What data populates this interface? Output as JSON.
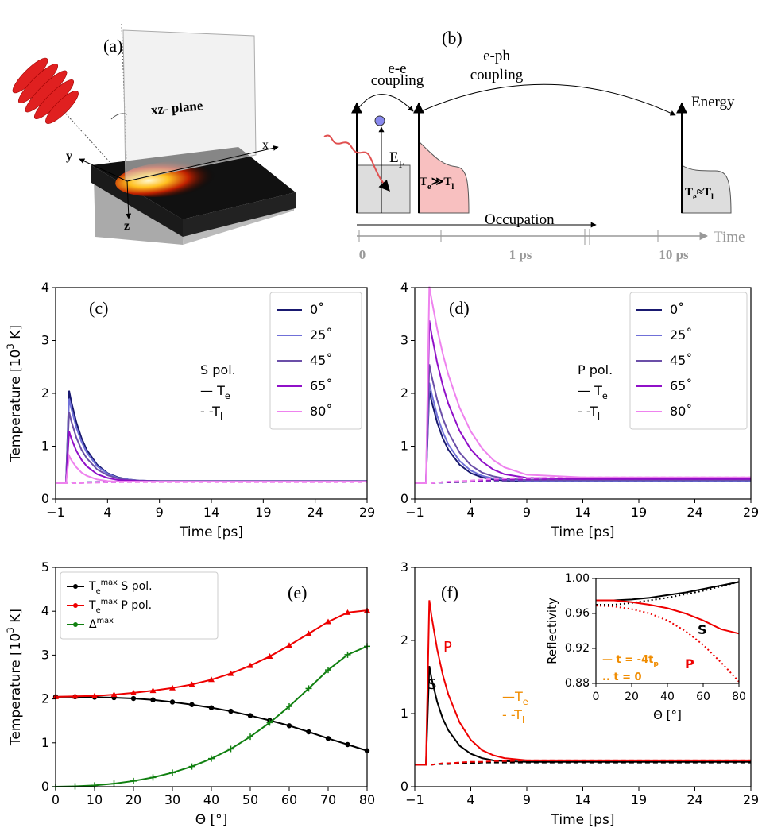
{
  "diagram": {
    "a": {
      "label": "(a)",
      "plane": "xz- plane",
      "x": "x",
      "y": "y",
      "z": "z"
    },
    "b": {
      "label": "(b)",
      "ee_coupling": [
        "e-e",
        "coupling"
      ],
      "eph_coupling": [
        "e-ph",
        "coupling"
      ],
      "energy": "Energy",
      "fermi": "E_{F}",
      "hot": "T_{e}≫T_{l}",
      "eq": "T_{e}≈T_{l}",
      "occupation": "Occupation",
      "time_ticks": [
        "0",
        "1 ps",
        "10 ps"
      ],
      "time": "Time"
    }
  },
  "chart_data": [
    {
      "type": "line",
      "panel": "(c)",
      "xlabel": "Time [ps]",
      "ylabel": "Temperature [10^{3} K]",
      "xlim": [
        -1,
        29
      ],
      "ylim": [
        0,
        4
      ],
      "xticks": [
        {
          "value": -1,
          "label": "−1"
        },
        4,
        9,
        14,
        19,
        24,
        29
      ],
      "yticks": [
        0,
        1,
        2,
        3,
        4
      ],
      "legend": "upper right",
      "annotations": [
        {
          "text": "S pol.",
          "color": "#000000"
        },
        {
          "text": "— T_{e}",
          "color": "#000000"
        },
        {
          "text": "- -T_{l}",
          "color": "#000000"
        }
      ],
      "x": [
        -1,
        0,
        0.3,
        0.5,
        1,
        1.5,
        2,
        3,
        4,
        5,
        6,
        7,
        9,
        14,
        19,
        24,
        29
      ],
      "series": [
        {
          "name": "0˚",
          "color": "#191970",
          "values": [
            0.3,
            0.3,
            2.05,
            1.85,
            1.45,
            1.15,
            0.93,
            0.65,
            0.49,
            0.41,
            0.37,
            0.35,
            0.34,
            0.34,
            0.34,
            0.34,
            0.34
          ],
          "tl_values": [
            0.3,
            0.3,
            0.3,
            0.3,
            0.31,
            0.31,
            0.32,
            0.32,
            0.33,
            0.33,
            0.33,
            0.33,
            0.33,
            0.33,
            0.33,
            0.33,
            0.33
          ]
        },
        {
          "name": "25˚",
          "color": "#7070d8",
          "values": [
            0.3,
            0.3,
            1.9,
            1.72,
            1.35,
            1.08,
            0.88,
            0.62,
            0.48,
            0.4,
            0.37,
            0.35,
            0.34,
            0.34,
            0.34,
            0.34,
            0.34
          ],
          "tl_values": [
            0.3,
            0.3,
            0.3,
            0.3,
            0.31,
            0.31,
            0.32,
            0.32,
            0.33,
            0.33,
            0.33,
            0.33,
            0.33,
            0.33,
            0.33,
            0.33,
            0.33
          ]
        },
        {
          "name": "45˚",
          "color": "#6b4fa8",
          "values": [
            0.3,
            0.3,
            1.65,
            1.48,
            1.16,
            0.93,
            0.77,
            0.56,
            0.45,
            0.39,
            0.36,
            0.35,
            0.34,
            0.34,
            0.34,
            0.34,
            0.34
          ],
          "tl_values": [
            0.3,
            0.3,
            0.3,
            0.3,
            0.31,
            0.31,
            0.31,
            0.32,
            0.32,
            0.33,
            0.33,
            0.33,
            0.33,
            0.33,
            0.33,
            0.33,
            0.33
          ]
        },
        {
          "name": "65˚",
          "color": "#9010c8",
          "values": [
            0.3,
            0.3,
            1.28,
            1.15,
            0.91,
            0.74,
            0.62,
            0.47,
            0.4,
            0.36,
            0.35,
            0.34,
            0.33,
            0.33,
            0.33,
            0.33,
            0.33
          ],
          "tl_values": [
            0.3,
            0.3,
            0.3,
            0.3,
            0.3,
            0.31,
            0.31,
            0.32,
            0.32,
            0.32,
            0.33,
            0.33,
            0.33,
            0.33,
            0.33,
            0.33,
            0.33
          ]
        },
        {
          "name": "80˚",
          "color": "#ee82ee",
          "values": [
            0.3,
            0.3,
            0.82,
            0.74,
            0.6,
            0.5,
            0.44,
            0.37,
            0.34,
            0.33,
            0.33,
            0.33,
            0.33,
            0.33,
            0.33,
            0.33,
            0.33
          ],
          "tl_values": [
            0.3,
            0.3,
            0.3,
            0.3,
            0.3,
            0.3,
            0.31,
            0.31,
            0.32,
            0.32,
            0.32,
            0.32,
            0.32,
            0.32,
            0.32,
            0.32,
            0.32
          ]
        }
      ]
    },
    {
      "type": "line",
      "panel": "(d)",
      "xlabel": "Time [ps]",
      "xlim": [
        -1,
        29
      ],
      "ylim": [
        0,
        4
      ],
      "xticks": [
        {
          "value": -1,
          "label": "−1"
        },
        4,
        9,
        14,
        19,
        24,
        29
      ],
      "yticks": [
        0,
        1,
        2,
        3,
        4
      ],
      "legend": "upper right",
      "annotations": [
        {
          "text": "P pol.",
          "color": "#000000"
        },
        {
          "text": "— T_{e}",
          "color": "#000000"
        },
        {
          "text": "- -T_{l}",
          "color": "#000000"
        }
      ],
      "x": [
        -1,
        0,
        0.3,
        0.5,
        1,
        1.5,
        2,
        3,
        4,
        5,
        6,
        7,
        9,
        14,
        19,
        24,
        29
      ],
      "series": [
        {
          "name": "0˚",
          "color": "#191970",
          "values": [
            0.3,
            0.3,
            2.05,
            1.85,
            1.45,
            1.15,
            0.93,
            0.65,
            0.49,
            0.41,
            0.37,
            0.35,
            0.34,
            0.34,
            0.34,
            0.34,
            0.34
          ],
          "tl_values": [
            0.3,
            0.3,
            0.3,
            0.3,
            0.31,
            0.31,
            0.32,
            0.32,
            0.33,
            0.33,
            0.33,
            0.33,
            0.33,
            0.33,
            0.33,
            0.33,
            0.33
          ]
        },
        {
          "name": "25˚",
          "color": "#7070d8",
          "values": [
            0.3,
            0.3,
            2.2,
            2,
            1.58,
            1.27,
            1.03,
            0.72,
            0.54,
            0.44,
            0.39,
            0.37,
            0.35,
            0.35,
            0.35,
            0.35,
            0.35
          ],
          "tl_values": [
            0.3,
            0.3,
            0.3,
            0.3,
            0.31,
            0.31,
            0.32,
            0.33,
            0.33,
            0.34,
            0.34,
            0.35,
            0.35,
            0.35,
            0.35,
            0.35,
            0.35
          ]
        },
        {
          "name": "45˚",
          "color": "#6b4fa8",
          "values": [
            0.3,
            0.3,
            2.55,
            2.33,
            1.88,
            1.53,
            1.26,
            0.88,
            0.64,
            0.5,
            0.43,
            0.39,
            0.36,
            0.36,
            0.36,
            0.36,
            0.36
          ],
          "tl_values": [
            0.3,
            0.3,
            0.3,
            0.3,
            0.31,
            0.32,
            0.32,
            0.33,
            0.34,
            0.34,
            0.35,
            0.35,
            0.36,
            0.36,
            0.36,
            0.36,
            0.36
          ]
        },
        {
          "name": "65˚",
          "color": "#9010c8",
          "values": [
            0.3,
            0.3,
            3.38,
            3.12,
            2.58,
            2.15,
            1.8,
            1.29,
            0.94,
            0.71,
            0.56,
            0.47,
            0.4,
            0.38,
            0.38,
            0.38,
            0.38
          ],
          "tl_values": [
            0.3,
            0.3,
            0.3,
            0.3,
            0.31,
            0.32,
            0.32,
            0.33,
            0.34,
            0.35,
            0.36,
            0.37,
            0.37,
            0.38,
            0.38,
            0.38,
            0.38
          ]
        },
        {
          "name": "80˚",
          "color": "#ee82ee",
          "values": [
            0.3,
            0.3,
            4.02,
            3.78,
            3.22,
            2.75,
            2.35,
            1.73,
            1.28,
            0.96,
            0.74,
            0.6,
            0.46,
            0.41,
            0.41,
            0.41,
            0.41
          ],
          "tl_values": [
            0.3,
            0.3,
            0.3,
            0.3,
            0.31,
            0.32,
            0.33,
            0.34,
            0.35,
            0.37,
            0.38,
            0.39,
            0.4,
            0.41,
            0.41,
            0.41,
            0.41
          ]
        }
      ]
    },
    {
      "type": "line",
      "panel": "(e)",
      "xlabel": "Θ [°]",
      "ylabel": "Temperature [10^{3} K]",
      "xlim": [
        0,
        80
      ],
      "ylim": [
        0,
        5
      ],
      "xticks": [
        0,
        10,
        20,
        30,
        40,
        50,
        60,
        70,
        80
      ],
      "yticks": [
        0,
        1,
        2,
        3,
        4,
        5
      ],
      "legend": "upper left",
      "x": [
        0,
        5,
        10,
        15,
        20,
        25,
        30,
        35,
        40,
        45,
        50,
        55,
        60,
        65,
        70,
        75,
        80
      ],
      "series": [
        {
          "name": "T_{e}^{max} S pol.",
          "color": "#000000",
          "marker": "circle",
          "values": [
            2.05,
            2.05,
            2.04,
            2.03,
            2.01,
            1.98,
            1.93,
            1.87,
            1.8,
            1.72,
            1.62,
            1.51,
            1.39,
            1.25,
            1.1,
            0.96,
            0.82
          ]
        },
        {
          "name": "T_{e}^{max} P pol.",
          "color": "#ee0000",
          "marker": "triangle",
          "values": [
            2.05,
            2.06,
            2.07,
            2.1,
            2.14,
            2.19,
            2.25,
            2.33,
            2.44,
            2.58,
            2.76,
            2.97,
            3.22,
            3.49,
            3.76,
            3.97,
            4.02
          ]
        },
        {
          "name": "Δ^{max}",
          "color": "#108010",
          "marker": "plus",
          "values": [
            0,
            0.01,
            0.03,
            0.07,
            0.13,
            0.21,
            0.32,
            0.46,
            0.64,
            0.86,
            1.14,
            1.46,
            1.83,
            2.24,
            2.66,
            3.01,
            3.2
          ]
        }
      ]
    },
    {
      "type": "line",
      "panel": "(f)",
      "xlabel": "Time [ps]",
      "xlim": [
        -1,
        29
      ],
      "ylim": [
        0,
        3
      ],
      "xticks": [
        {
          "value": -1,
          "label": "−1"
        },
        4,
        9,
        14,
        19,
        24,
        29
      ],
      "yticks": [
        0,
        1,
        2,
        3
      ],
      "annotations": [
        {
          "text": "—T_{e}",
          "color": "#f08c00"
        },
        {
          "text": "- -T_{l}",
          "color": "#f08c00"
        }
      ],
      "x": [
        -1,
        0,
        0.3,
        0.5,
        1,
        1.5,
        2,
        3,
        4,
        5,
        6,
        7,
        9,
        14,
        19,
        24,
        29
      ],
      "series": [
        {
          "name": "S",
          "color": "#000000",
          "values": [
            0.3,
            0.3,
            1.65,
            1.48,
            1.16,
            0.93,
            0.77,
            0.56,
            0.45,
            0.39,
            0.36,
            0.35,
            0.34,
            0.34,
            0.34,
            0.34,
            0.34
          ],
          "tl_values": [
            0.3,
            0.3,
            0.3,
            0.3,
            0.31,
            0.31,
            0.31,
            0.32,
            0.32,
            0.33,
            0.33,
            0.33,
            0.33,
            0.33,
            0.33,
            0.33,
            0.33
          ]
        },
        {
          "name": "P",
          "color": "#ee0000",
          "values": [
            0.3,
            0.3,
            2.55,
            2.33,
            1.88,
            1.53,
            1.26,
            0.88,
            0.64,
            0.5,
            0.43,
            0.39,
            0.36,
            0.36,
            0.36,
            0.36,
            0.36
          ],
          "tl_values": [
            0.3,
            0.3,
            0.3,
            0.3,
            0.31,
            0.32,
            0.32,
            0.33,
            0.34,
            0.34,
            0.35,
            0.35,
            0.36,
            0.36,
            0.36,
            0.36,
            0.36
          ]
        }
      ]
    },
    {
      "type": "line",
      "xlabel": "Θ [°]",
      "ylabel": "Reflectivity",
      "xlim": [
        0,
        80
      ],
      "ylim": [
        0.88,
        1
      ],
      "xticks": [
        0,
        20,
        40,
        60,
        80
      ],
      "yticks": [
        0.88,
        0.92,
        0.96,
        {
          "value": 1,
          "label": "1.00"
        }
      ],
      "annotations": [
        {
          "text": "— t = -4t_{p}",
          "color": "#f08c00"
        },
        {
          "text": ".. t = 0",
          "color": "#f08c00"
        }
      ],
      "x": [
        0,
        10,
        20,
        30,
        40,
        50,
        60,
        70,
        80
      ],
      "series": [
        {
          "name": "S",
          "color": "#000000",
          "values": [
            0.975,
            0.975,
            0.976,
            0.978,
            0.981,
            0.984,
            0.988,
            0.992,
            0.996
          ],
          "values_t0": [
            0.97,
            0.97,
            0.972,
            0.975,
            0.978,
            0.982,
            0.986,
            0.991,
            0.996
          ]
        },
        {
          "name": "P",
          "color": "#ee0000",
          "values": [
            0.975,
            0.975,
            0.973,
            0.97,
            0.966,
            0.96,
            0.952,
            0.942,
            0.937
          ],
          "values_t0": [
            0.969,
            0.968,
            0.965,
            0.96,
            0.952,
            0.94,
            0.924,
            0.904,
            0.882
          ]
        }
      ]
    }
  ]
}
